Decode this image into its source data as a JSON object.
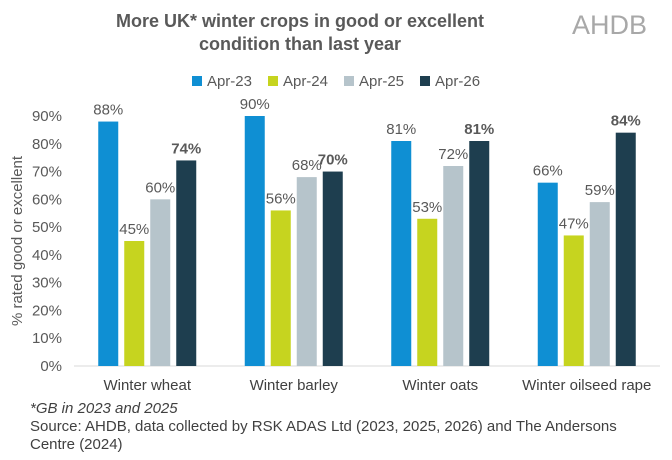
{
  "title_line1": "More UK* winter crops in good or excellent",
  "title_line2": "condition than last year",
  "logo_text": "AHDB",
  "footnote": "*GB in 2023 and 2025",
  "source": "Source: AHDB, data collected by RSK ADAS Ltd (2023, 2025, 2026) and The Andersons Centre (2024)",
  "chart_data": {
    "type": "bar",
    "title": "More UK* winter crops in good or excellent condition than last year",
    "ylabel": "% rated good or excellent",
    "xlabel": "",
    "ylim": [
      0,
      90
    ],
    "yticks": [
      "0%",
      "10%",
      "20%",
      "30%",
      "40%",
      "50%",
      "60%",
      "70%",
      "80%",
      "90%"
    ],
    "grid": false,
    "legend_position": "top",
    "categories": [
      "Winter wheat",
      "Winter barley",
      "Winter oats",
      "Winter oilseed rape"
    ],
    "series": [
      {
        "name": "Apr-23",
        "color": "#0f8fd3",
        "values": [
          88,
          90,
          81,
          66
        ],
        "labels": [
          "88%",
          "90%",
          "81%",
          "66%"
        ],
        "bold": false
      },
      {
        "name": "Apr-24",
        "color": "#c6d41f",
        "values": [
          45,
          56,
          53,
          47
        ],
        "labels": [
          "45%",
          "56%",
          "53%",
          "47%"
        ],
        "bold": false
      },
      {
        "name": "Apr-25",
        "color": "#b6c4cb",
        "values": [
          60,
          68,
          72,
          59
        ],
        "labels": [
          "60%",
          "68%",
          "72%",
          "59%"
        ],
        "bold": false
      },
      {
        "name": "Apr-26",
        "color": "#1e3e4f",
        "values": [
          74,
          70,
          81,
          84
        ],
        "labels": [
          "74%",
          "70%",
          "81%",
          "84%"
        ],
        "bold": true
      }
    ]
  }
}
